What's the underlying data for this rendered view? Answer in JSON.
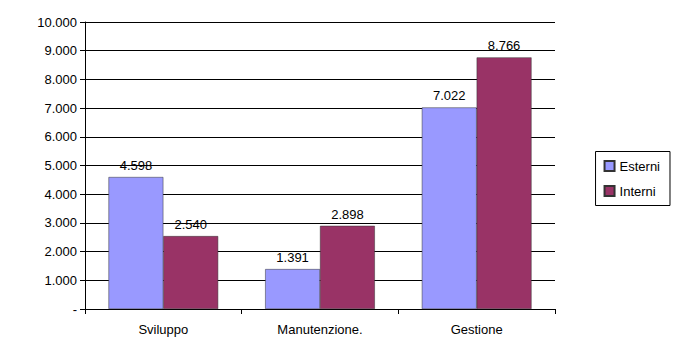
{
  "chart_data": {
    "type": "bar",
    "categories": [
      "Sviluppo",
      "Manutenzione.",
      "Gestione"
    ],
    "series": [
      {
        "name": "Esterni",
        "color": "#9999ff",
        "values": [
          4598,
          1391,
          7022
        ],
        "value_labels": [
          "4.598",
          "1.391",
          "7.022"
        ]
      },
      {
        "name": "Interni",
        "color": "#993366",
        "values": [
          2540,
          2898,
          8766
        ],
        "value_labels": [
          "2.540",
          "2.898",
          "8.766"
        ]
      }
    ],
    "ylim": [
      0,
      10000
    ],
    "yticks": [
      {
        "value": 0,
        "label": "-"
      },
      {
        "value": 1000,
        "label": "1.000"
      },
      {
        "value": 2000,
        "label": "2.000"
      },
      {
        "value": 3000,
        "label": "3.000"
      },
      {
        "value": 4000,
        "label": "4.000"
      },
      {
        "value": 5000,
        "label": "5.000"
      },
      {
        "value": 6000,
        "label": "6.000"
      },
      {
        "value": 7000,
        "label": "7.000"
      },
      {
        "value": 8000,
        "label": "8.000"
      },
      {
        "value": 9000,
        "label": "9.000"
      },
      {
        "value": 10000,
        "label": "10.000"
      }
    ],
    "grid": true,
    "legend": "right",
    "data_labels": true
  }
}
